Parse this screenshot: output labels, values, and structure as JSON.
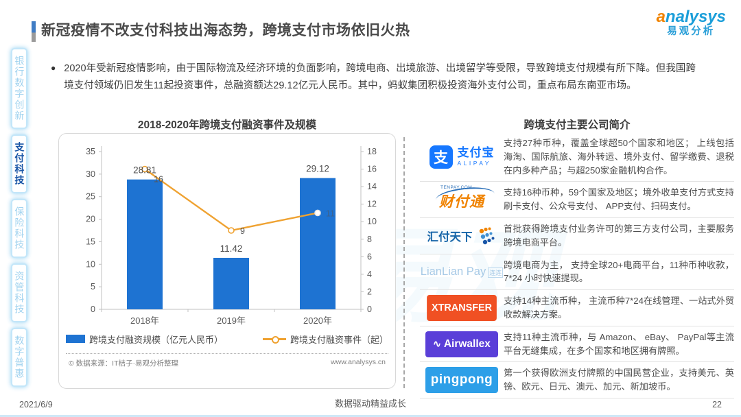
{
  "header": {
    "title": "新冠疫情不改支付科技出海态势，跨境支付市场依旧火热",
    "logo": {
      "en": "analysys",
      "cn": "易观分析"
    }
  },
  "sidebar": {
    "items": [
      {
        "label": "银行数字创新",
        "active": false
      },
      {
        "label": "支付科技",
        "active": true
      },
      {
        "label": "保险科技",
        "active": false
      },
      {
        "label": "资管科技",
        "active": false
      },
      {
        "label": "数字普惠",
        "active": false
      }
    ]
  },
  "bullet": {
    "dot": "●",
    "text": "2020年受新冠疫情影响，由于国际物流及经济环境的负面影响，跨境电商、出境旅游、出境留学等受限，导致跨境支付规模有所下降。但我国跨境支付领域仍旧发生11起投资事件，总融资额达29.12亿元人民币。其中，蚂蚁集团积极投资海外支付公司，重点布局东南亚市场。"
  },
  "chart_data": {
    "type": "bar",
    "title": "2018-2020年跨境支付融资事件及规模",
    "categories": [
      "2018年",
      "2019年",
      "2020年"
    ],
    "series": [
      {
        "name": "跨境支付融资规模（亿元人民币）",
        "type": "bar",
        "axis": "left",
        "values": [
          28.81,
          11.42,
          29.12
        ],
        "color": "#1e73d2"
      },
      {
        "name": "跨境支付融资事件（起）",
        "type": "line",
        "axis": "right",
        "values": [
          16,
          9,
          11
        ],
        "color": "#efa231"
      }
    ],
    "left_axis": {
      "min": 0,
      "max": 35,
      "step": 5
    },
    "right_axis": {
      "min": 0,
      "max": 18,
      "step": 2
    },
    "grid": false,
    "legend_position": "bottom",
    "source": "© 数据来源：IT桔子·易观分析整理",
    "site": "www.analysys.cn"
  },
  "companies": {
    "title": "跨境支付主要公司简介",
    "rows": [
      {
        "name": "支付宝",
        "logo": {
          "glyph": "支",
          "cn": "支付宝",
          "en": "ALIPAY",
          "color": "#1677ff"
        },
        "desc": "支持27种币种，覆盖全球超50个国家和地区； 上线包括海淘、国际航旅、海外转运、境外支付、留学缴费、退税在内多种产品；与超250家金融机构合作。"
      },
      {
        "name": "财付通",
        "logo": {
          "cn": "财付通",
          "en": "TENPAY.COM",
          "color": "#f08300"
        },
        "desc": "支持16种币种，59个国家及地区；境外收单支付方式支持刷卡支付、公众号支付、 APP支付、扫码支付。"
      },
      {
        "name": "汇付天下",
        "logo": {
          "cn": "汇付天下",
          "color": "#1765a8"
        },
        "desc": "首批获得跨境支付业务许可的第三方支付公司，主要服务跨境电商平台。"
      },
      {
        "name": "连连支付",
        "logo": {
          "en": "LianLian Pay",
          "cn": "连连",
          "color": "#a6c9e6"
        },
        "desc": "跨境电商为主， 支持全球20+电商平台，11种币种收款，7*24 小时快速提现。"
      },
      {
        "name": "XTransfer",
        "logo": {
          "en": "XTRANSFER",
          "color": "#f05023"
        },
        "desc": "支持14种主流币种， 主流币种7*24在线管理、一站式外贸收款解决方案。"
      },
      {
        "name": "Airwallex",
        "logo": {
          "en": "Airwallex",
          "color": "#5a3fd8"
        },
        "desc": "支持11种主流币种，与 Amazon、 eBay、 PayPal等主流平台无缝集成，在多个国家和地区拥有牌照。"
      },
      {
        "name": "PingPong",
        "logo": {
          "en": "pingpong",
          "color": "#2d9fe8"
        },
        "desc": "第一个获得欧洲支付牌照的中国民营企业，支持美元、英镑、欧元、日元、澳元、加元、新加坡币。"
      }
    ]
  },
  "footer": {
    "date": "2021/6/9",
    "slogan": "数据驱动精益成长",
    "page": "22"
  }
}
